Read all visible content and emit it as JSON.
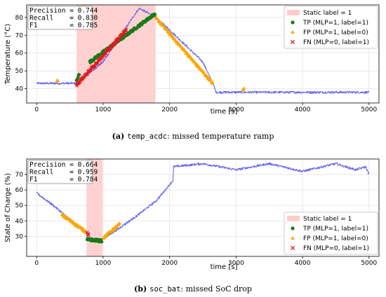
{
  "chart_data": [
    {
      "type": "scatter",
      "xlabel": "time [s]",
      "ylabel": "Temperature (°C)",
      "xlim": [
        -150,
        5150
      ],
      "ylim": [
        32,
        87
      ],
      "xticks": [
        0,
        1000,
        2000,
        3000,
        4000,
        5000
      ],
      "yticks": [
        40,
        50,
        60,
        70,
        80
      ],
      "grid": true,
      "legend_position": "top-right",
      "static_label_region": [
        600,
        1790
      ],
      "metrics": {
        "precision": "Precision = 0.744",
        "recall": "Recall    = 0.830",
        "f1": "F1        = 0.785"
      },
      "signal": {
        "name": "signal",
        "x": [
          0,
          300,
          600,
          1000,
          1500,
          1550,
          1790,
          2000,
          2500,
          2650,
          2700,
          3000,
          4000,
          5000
        ],
        "y": [
          43,
          43,
          43,
          55,
          83,
          85,
          80,
          73,
          55,
          43,
          38,
          38,
          38,
          38
        ]
      },
      "series": [
        {
          "name": "Static label = 1",
          "kind": "region"
        },
        {
          "name": "TP (MLP=1, label=1)",
          "kind": "point",
          "segments": [
            [
              600,
              45,
              640,
              48
            ],
            [
              800,
              55,
              1780,
              82
            ]
          ]
        },
        {
          "name": "FP (MLP=1, label=0)",
          "kind": "point",
          "segments": [
            [
              1790,
              80,
              2650,
              43
            ],
            [
              300,
              44,
              320,
              45
            ],
            [
              3100,
              39,
              3120,
              40
            ]
          ]
        },
        {
          "name": "FN (MLP=0, label=1)",
          "kind": "point",
          "segments": [
            [
              600,
              42,
              1350,
              73
            ]
          ]
        }
      ],
      "caption": {
        "label": "(a)",
        "code": "temp_acdc",
        "text": ": missed temperature ramp"
      }
    },
    {
      "type": "scatter",
      "xlabel": "time [s]",
      "ylabel": "State of Charge (%)",
      "xlim": [
        -150,
        5150
      ],
      "ylim": [
        17,
        80
      ],
      "xticks": [
        0,
        1000,
        2000,
        3000,
        4000,
        5000
      ],
      "yticks": [
        30,
        40,
        50,
        60,
        70
      ],
      "grid": true,
      "legend_position": "bottom-right",
      "static_label_region": [
        750,
        990
      ],
      "metrics": {
        "precision": "Precision = 0.664",
        "recall": "Recall    = 0.959",
        "f1": "F1        = 0.784"
      },
      "signal": {
        "name": "signal",
        "x": [
          0,
          250,
          500,
          750,
          850,
          950,
          1200,
          1500,
          1800,
          2050,
          2060,
          2500,
          3000,
          3500,
          4000,
          4500,
          4800,
          4950,
          5000
        ],
        "y": [
          58,
          50,
          41,
          32,
          27,
          27,
          34,
          43,
          53,
          66,
          75,
          77,
          73,
          77,
          72,
          77,
          73,
          75,
          70
        ]
      },
      "series": [
        {
          "name": "Static label = 1",
          "kind": "region"
        },
        {
          "name": "TP (MLP=1, label=1)",
          "kind": "point",
          "segments": [
            [
              760,
              28,
              980,
              27
            ]
          ]
        },
        {
          "name": "FP (MLP=1, label=0)",
          "kind": "point",
          "segments": [
            [
              380,
              44,
              740,
              33
            ],
            [
              1000,
              29,
              1250,
              38
            ]
          ]
        },
        {
          "name": "FN (MLP=0, label=1)",
          "kind": "point",
          "segments": [
            [
              760,
              32,
              780,
              31
            ]
          ]
        }
      ],
      "caption": {
        "label": "(b)",
        "code": "soc_bat",
        "text": ": missed SoC drop"
      }
    }
  ],
  "colors": {
    "signal": "#6666ee",
    "region": "#ffcccc",
    "tp": "#1a7a1a",
    "fp": "#ffa500",
    "fn": "#e0181d"
  }
}
